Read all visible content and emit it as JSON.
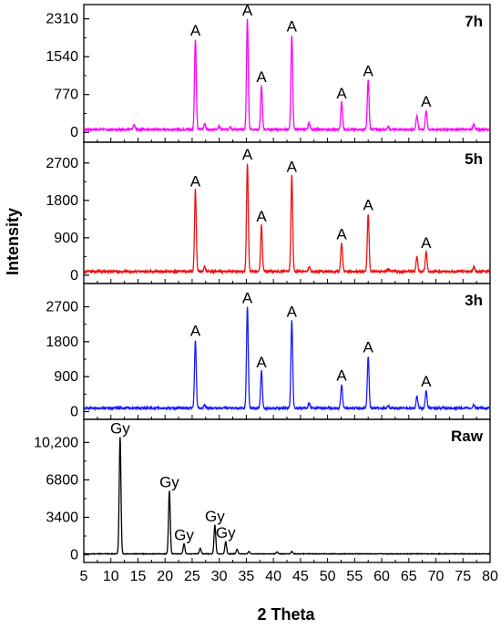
{
  "chart_data": {
    "type": "line",
    "xlabel": "2 Theta",
    "ylabel": "Intensity",
    "xlim": [
      5,
      80
    ],
    "x_ticks": [
      "5",
      "10",
      "15",
      "20",
      "25",
      "30",
      "35",
      "40",
      "45",
      "50",
      "55",
      "60",
      "65",
      "70",
      "75",
      "80"
    ],
    "panels": [
      {
        "label": "7h",
        "color": "#ff00ff",
        "ylim": [
          -200,
          2600
        ],
        "y_ticks": [
          {
            "value": 0,
            "label": "0"
          },
          {
            "value": 770,
            "label": "770"
          },
          {
            "value": 1540,
            "label": "1540"
          },
          {
            "value": 2310,
            "label": "2310"
          }
        ],
        "baseline": 60,
        "peaks": [
          {
            "x": 14.3,
            "y": 150
          },
          {
            "x": 25.6,
            "y": 1900
          },
          {
            "x": 27.3,
            "y": 180
          },
          {
            "x": 30.0,
            "y": 130
          },
          {
            "x": 32.0,
            "y": 120
          },
          {
            "x": 35.2,
            "y": 2300
          },
          {
            "x": 37.8,
            "y": 950
          },
          {
            "x": 43.4,
            "y": 1980
          },
          {
            "x": 46.6,
            "y": 200
          },
          {
            "x": 52.6,
            "y": 620
          },
          {
            "x": 57.5,
            "y": 1070
          },
          {
            "x": 61.2,
            "y": 120
          },
          {
            "x": 66.5,
            "y": 350
          },
          {
            "x": 68.2,
            "y": 450
          },
          {
            "x": 77.0,
            "y": 170
          }
        ],
        "annotations": [
          {
            "text": "A",
            "x": 25.6,
            "y": 1900
          },
          {
            "text": "A",
            "x": 35.2,
            "y": 2300
          },
          {
            "text": "A",
            "x": 37.8,
            "y": 950
          },
          {
            "text": "A",
            "x": 43.4,
            "y": 1980
          },
          {
            "text": "A",
            "x": 52.6,
            "y": 620
          },
          {
            "text": "A",
            "x": 57.5,
            "y": 1070
          },
          {
            "text": "A",
            "x": 68.2,
            "y": 450
          }
        ]
      },
      {
        "label": "5h",
        "color": "#ee1111",
        "ylim": [
          -200,
          3200
        ],
        "y_ticks": [
          {
            "value": 0,
            "label": "0"
          },
          {
            "value": 900,
            "label": "900"
          },
          {
            "value": 1800,
            "label": "1800"
          },
          {
            "value": 2700,
            "label": "2700"
          }
        ],
        "baseline": 90,
        "peaks": [
          {
            "x": 25.6,
            "y": 2050
          },
          {
            "x": 27.3,
            "y": 200
          },
          {
            "x": 35.2,
            "y": 2700
          },
          {
            "x": 37.8,
            "y": 1200
          },
          {
            "x": 43.4,
            "y": 2400
          },
          {
            "x": 46.6,
            "y": 210
          },
          {
            "x": 52.6,
            "y": 780
          },
          {
            "x": 57.5,
            "y": 1480
          },
          {
            "x": 61.2,
            "y": 150
          },
          {
            "x": 66.5,
            "y": 450
          },
          {
            "x": 68.2,
            "y": 570
          },
          {
            "x": 77.0,
            "y": 200
          }
        ],
        "annotations": [
          {
            "text": "A",
            "x": 25.6,
            "y": 2050
          },
          {
            "text": "A",
            "x": 35.2,
            "y": 2700
          },
          {
            "text": "A",
            "x": 37.8,
            "y": 1200
          },
          {
            "text": "A",
            "x": 43.4,
            "y": 2400
          },
          {
            "text": "A",
            "x": 52.6,
            "y": 780
          },
          {
            "text": "A",
            "x": 57.5,
            "y": 1480
          },
          {
            "text": "A",
            "x": 68.2,
            "y": 570
          }
        ]
      },
      {
        "label": "3h",
        "color": "#1a1aff",
        "ylim": [
          -200,
          3300
        ],
        "y_ticks": [
          {
            "value": 0,
            "label": "0"
          },
          {
            "value": 900,
            "label": "900"
          },
          {
            "value": 1800,
            "label": "1800"
          },
          {
            "value": 2700,
            "label": "2700"
          }
        ],
        "baseline": 90,
        "peaks": [
          {
            "x": 25.6,
            "y": 1850
          },
          {
            "x": 27.3,
            "y": 180
          },
          {
            "x": 35.2,
            "y": 2700
          },
          {
            "x": 37.8,
            "y": 1050
          },
          {
            "x": 43.4,
            "y": 2350
          },
          {
            "x": 46.6,
            "y": 220
          },
          {
            "x": 52.6,
            "y": 700
          },
          {
            "x": 57.5,
            "y": 1430
          },
          {
            "x": 61.2,
            "y": 150
          },
          {
            "x": 66.5,
            "y": 400
          },
          {
            "x": 68.2,
            "y": 550
          },
          {
            "x": 77.0,
            "y": 180
          }
        ],
        "annotations": [
          {
            "text": "A",
            "x": 25.6,
            "y": 1850
          },
          {
            "text": "A",
            "x": 35.2,
            "y": 2700
          },
          {
            "text": "A",
            "x": 37.8,
            "y": 1050
          },
          {
            "text": "A",
            "x": 43.4,
            "y": 2350
          },
          {
            "text": "A",
            "x": 52.6,
            "y": 700
          },
          {
            "text": "A",
            "x": 57.5,
            "y": 1430
          },
          {
            "text": "A",
            "x": 68.2,
            "y": 550
          }
        ]
      },
      {
        "label": "Raw",
        "color": "#000000",
        "ylim": [
          -700,
          12300
        ],
        "y_ticks": [
          {
            "value": 0,
            "label": "0"
          },
          {
            "value": 3400,
            "label": "3400"
          },
          {
            "value": 6800,
            "label": "6800"
          },
          {
            "value": 10200,
            "label": "10,200"
          }
        ],
        "baseline": 80,
        "peaks": [
          {
            "x": 11.7,
            "y": 10700
          },
          {
            "x": 20.8,
            "y": 5800
          },
          {
            "x": 23.5,
            "y": 1000
          },
          {
            "x": 26.5,
            "y": 600
          },
          {
            "x": 29.2,
            "y": 2700
          },
          {
            "x": 31.2,
            "y": 1200
          },
          {
            "x": 33.3,
            "y": 500
          },
          {
            "x": 35.5,
            "y": 300
          },
          {
            "x": 40.7,
            "y": 250
          },
          {
            "x": 43.4,
            "y": 300
          }
        ],
        "annotations": [
          {
            "text": "Gy",
            "x": 11.7,
            "y": 10700
          },
          {
            "text": "Gy",
            "x": 20.8,
            "y": 5800
          },
          {
            "text": "Gy",
            "x": 23.5,
            "y": 1000
          },
          {
            "text": "Gy",
            "x": 29.2,
            "y": 2700
          },
          {
            "text": "Gy",
            "x": 31.2,
            "y": 1200
          }
        ]
      }
    ]
  }
}
